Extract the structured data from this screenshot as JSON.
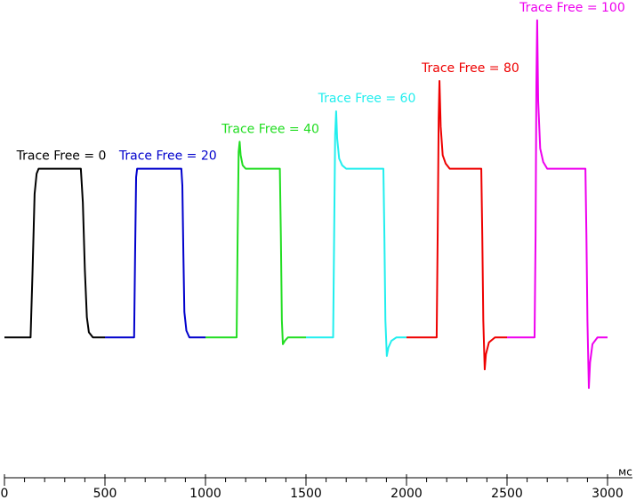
{
  "chart_data": {
    "type": "line",
    "xlabel": "мс",
    "xlim": [
      0,
      3000
    ],
    "ylim": [
      -60,
      200
    ],
    "xticks": [
      0,
      500,
      1000,
      1500,
      2000,
      2500,
      3000
    ],
    "xminorticks": [
      100,
      200,
      300,
      400,
      600,
      700,
      800,
      900,
      1100,
      1200,
      1300,
      1400,
      1600,
      1700,
      1800,
      1900,
      2100,
      2200,
      2300,
      2400,
      2600,
      2700,
      2800,
      2900
    ],
    "grid": false,
    "series": [
      {
        "name": "Trace Free = 0",
        "color": "#000000",
        "x": [
          0,
          130,
          140,
          150,
          160,
          170,
          200,
          380,
          390,
          400,
          410,
          420,
          440,
          500
        ],
        "values": [
          0,
          0,
          40,
          85,
          97,
          100,
          100,
          100,
          80,
          40,
          12,
          3,
          0,
          0
        ]
      },
      {
        "name": "Trace Free = 20",
        "color": "#0000cc",
        "x": [
          500,
          645,
          650,
          655,
          660,
          880,
          885,
          890,
          895,
          905,
          920,
          1000
        ],
        "values": [
          0,
          0,
          50,
          95,
          100,
          100,
          90,
          50,
          15,
          4,
          0,
          0
        ]
      },
      {
        "name": "Trace Free = 40",
        "color": "#22dd22",
        "x": [
          1000,
          1155,
          1160,
          1165,
          1170,
          1175,
          1185,
          1200,
          1370,
          1375,
          1380,
          1385,
          1395,
          1410,
          1500
        ],
        "values": [
          0,
          0,
          60,
          110,
          116,
          108,
          102,
          100,
          100,
          60,
          10,
          -4,
          -2,
          0,
          0
        ]
      },
      {
        "name": "Trace Free = 60",
        "color": "#22eeee",
        "x": [
          1500,
          1635,
          1640,
          1645,
          1650,
          1655,
          1665,
          1680,
          1700,
          1885,
          1890,
          1895,
          1902,
          1910,
          1925,
          1950,
          2000
        ],
        "values": [
          0,
          0,
          60,
          120,
          134,
          118,
          106,
          102,
          100,
          100,
          60,
          10,
          -11,
          -6,
          -2,
          0,
          0
        ]
      },
      {
        "name": "Trace Free = 80",
        "color": "#ee0000",
        "x": [
          2000,
          2150,
          2155,
          2160,
          2164,
          2170,
          2180,
          2195,
          2215,
          2372,
          2377,
          2382,
          2389,
          2395,
          2410,
          2440,
          2500
        ],
        "values": [
          0,
          0,
          60,
          130,
          152,
          125,
          108,
          103,
          100,
          100,
          60,
          10,
          -19,
          -10,
          -3,
          0,
          0
        ]
      },
      {
        "name": "Trace Free = 100",
        "color": "#ee00ee",
        "x": [
          2500,
          2637,
          2642,
          2646,
          2650,
          2655,
          2665,
          2680,
          2700,
          2890,
          2895,
          2900,
          2907,
          2913,
          2925,
          2950,
          3000
        ],
        "values": [
          0,
          0,
          60,
          150,
          188,
          140,
          112,
          104,
          100,
          100,
          60,
          10,
          -30,
          -15,
          -4,
          0,
          0
        ]
      }
    ]
  }
}
